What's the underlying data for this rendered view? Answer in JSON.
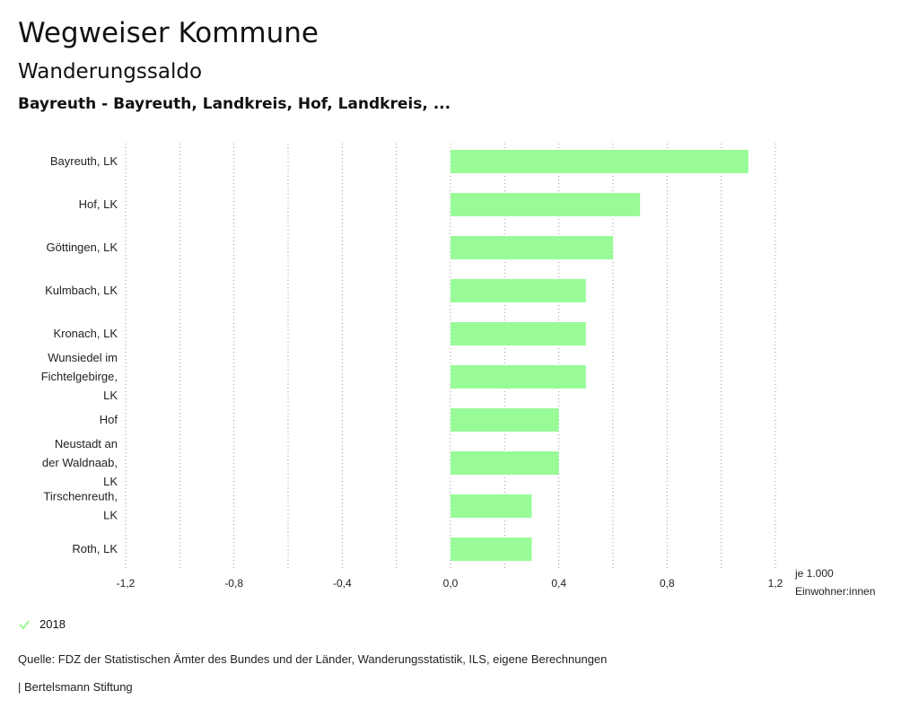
{
  "header": {
    "app_title": "Wegweiser Kommune"
  },
  "chart_data": {
    "type": "bar",
    "orientation": "horizontal",
    "title": "Wanderungssaldo",
    "subtitle": "Bayreuth - Bayreuth, Landkreis, Hof, Landkreis, ...",
    "categories": [
      [
        "Bayreuth, LK"
      ],
      [
        "Hof, LK"
      ],
      [
        "Göttingen, LK"
      ],
      [
        "Kulmbach, LK"
      ],
      [
        "Kronach, LK"
      ],
      [
        "Wunsiedel im",
        "Fichtelgebirge,",
        "LK"
      ],
      [
        "Hof"
      ],
      [
        "Neustadt an",
        "der Waldnaab,",
        "LK"
      ],
      [
        "Tirschenreuth,",
        "LK"
      ],
      [
        "Roth, LK"
      ]
    ],
    "series": [
      {
        "name": "2018",
        "color": "#98fb98",
        "values": [
          1.1,
          0.7,
          0.6,
          0.5,
          0.5,
          0.5,
          0.4,
          0.4,
          0.3,
          0.3
        ]
      }
    ],
    "xlim": [
      -1.2,
      1.2
    ],
    "tick_values": [
      -1.2,
      -0.8,
      -0.4,
      0.0,
      0.4,
      0.8,
      1.2
    ],
    "tick_labels": [
      "-1,2",
      "-0,8",
      "-0,4",
      "0,0",
      "0,4",
      "0,8",
      "1,2"
    ],
    "grid_values": [
      -1.2,
      -1.0,
      -0.8,
      -0.6,
      -0.4,
      -0.2,
      0.0,
      0.2,
      0.4,
      0.6,
      0.8,
      1.0,
      1.2
    ],
    "unit_label": [
      "je 1.000",
      "Einwohner:innen"
    ],
    "grid": true,
    "legend_position": "bottom-left"
  },
  "legend": {
    "label": "2018",
    "color": "#98fb98"
  },
  "footer": {
    "source": "Quelle: FDZ der Statistischen Ämter des Bundes und der Länder, Wanderungsstatistik, ILS, eigene Berechnungen",
    "publisher": "| Bertelsmann Stiftung"
  }
}
